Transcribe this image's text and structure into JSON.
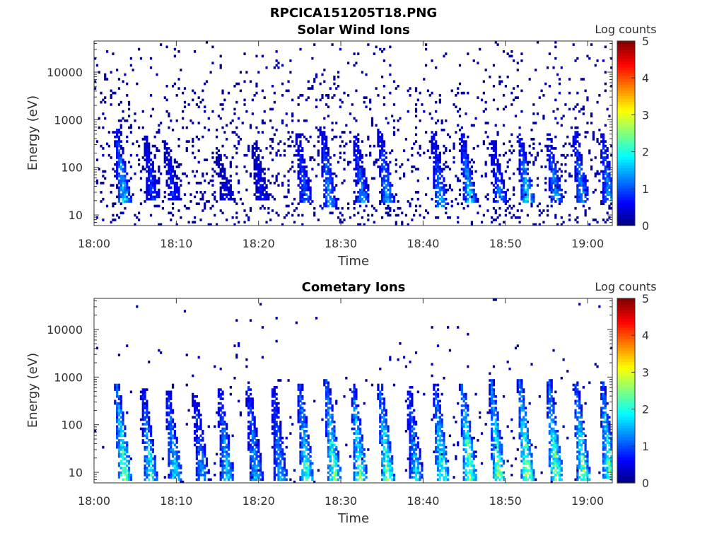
{
  "figure": {
    "title": "RPCICA151205T18.PNG"
  },
  "chart_data": [
    {
      "type": "heatmap",
      "title": "Solar Wind Ions",
      "xlabel": "Time",
      "ylabel": "Energy (eV)",
      "x_ticks": [
        "18:00",
        "18:10",
        "18:20",
        "18:30",
        "18:40",
        "18:50",
        "19:00"
      ],
      "x_tick_minutes": [
        0,
        10,
        20,
        30,
        40,
        50,
        60
      ],
      "xlim_minutes": [
        0,
        63
      ],
      "y_scale": "log",
      "y_ticks": [
        "10",
        "100",
        "1000",
        "10000"
      ],
      "y_tick_values": [
        10,
        100,
        1000,
        10000
      ],
      "ylim": [
        6,
        45000
      ],
      "colorbar": {
        "label": "Log counts",
        "ticks": [
          "0",
          "1",
          "2",
          "3",
          "4",
          "5"
        ],
        "range": [
          0,
          5
        ],
        "colormap": "jet"
      },
      "pattern": {
        "sparse_background_level": 0.3,
        "bursts": [
          {
            "t": 2.8,
            "e_high": 500,
            "e_low": 25,
            "peak": 1.8
          },
          {
            "t": 6.3,
            "e_high": 350,
            "e_low": 30,
            "peak": 1.0
          },
          {
            "t": 8.8,
            "e_high": 250,
            "e_low": 30,
            "peak": 0.9
          },
          {
            "t": 15.2,
            "e_high": 150,
            "e_low": 30,
            "peak": 0.6
          },
          {
            "t": 19.5,
            "e_high": 250,
            "e_low": 30,
            "peak": 0.7
          },
          {
            "t": 24.8,
            "e_high": 400,
            "e_low": 25,
            "peak": 1.2
          },
          {
            "t": 27.8,
            "e_high": 600,
            "e_low": 20,
            "peak": 1.5
          },
          {
            "t": 31.8,
            "e_high": 400,
            "e_low": 25,
            "peak": 1.4
          },
          {
            "t": 34.8,
            "e_high": 450,
            "e_low": 25,
            "peak": 1.6
          },
          {
            "t": 41.3,
            "e_high": 450,
            "e_low": 20,
            "peak": 1.5
          },
          {
            "t": 44.8,
            "e_high": 400,
            "e_low": 25,
            "peak": 1.8
          },
          {
            "t": 48.5,
            "e_high": 300,
            "e_low": 25,
            "peak": 1.3
          },
          {
            "t": 51.8,
            "e_high": 400,
            "e_low": 25,
            "peak": 1.9
          },
          {
            "t": 55.3,
            "e_high": 400,
            "e_low": 25,
            "peak": 1.6
          },
          {
            "t": 58.5,
            "e_high": 450,
            "e_low": 25,
            "peak": 1.5
          },
          {
            "t": 61.8,
            "e_high": 400,
            "e_low": 25,
            "peak": 1.6
          }
        ]
      }
    },
    {
      "type": "heatmap",
      "title": "Cometary Ions",
      "xlabel": "Time",
      "ylabel": "Energy (eV)",
      "x_ticks": [
        "18:00",
        "18:10",
        "18:20",
        "18:30",
        "18:40",
        "18:50",
        "19:00"
      ],
      "x_tick_minutes": [
        0,
        10,
        20,
        30,
        40,
        50,
        60
      ],
      "xlim_minutes": [
        0,
        63
      ],
      "y_scale": "log",
      "y_ticks": [
        "10",
        "100",
        "1000",
        "10000"
      ],
      "y_tick_values": [
        10,
        100,
        1000,
        10000
      ],
      "ylim": [
        6,
        45000
      ],
      "colorbar": {
        "label": "Log counts",
        "ticks": [
          "0",
          "1",
          "2",
          "3",
          "4",
          "5"
        ],
        "range": [
          0,
          5
        ],
        "colormap": "jet"
      },
      "pattern": {
        "sparse_background_level": 0.05,
        "bursts": [
          {
            "t": 2.8,
            "e_high": 600,
            "e_low": 10,
            "peak": 2.6
          },
          {
            "t": 6.0,
            "e_high": 450,
            "e_low": 10,
            "peak": 2.0
          },
          {
            "t": 9.0,
            "e_high": 400,
            "e_low": 10,
            "peak": 1.9
          },
          {
            "t": 12.3,
            "e_high": 350,
            "e_low": 10,
            "peak": 1.5
          },
          {
            "t": 15.3,
            "e_high": 450,
            "e_low": 10,
            "peak": 1.8
          },
          {
            "t": 18.8,
            "e_high": 500,
            "e_low": 10,
            "peak": 1.7
          },
          {
            "t": 21.8,
            "e_high": 500,
            "e_low": 10,
            "peak": 1.6
          },
          {
            "t": 25.0,
            "e_high": 600,
            "e_low": 10,
            "peak": 2.3
          },
          {
            "t": 28.3,
            "e_high": 700,
            "e_low": 10,
            "peak": 2.5
          },
          {
            "t": 31.5,
            "e_high": 600,
            "e_low": 10,
            "peak": 2.4
          },
          {
            "t": 34.8,
            "e_high": 600,
            "e_low": 10,
            "peak": 2.6
          },
          {
            "t": 38.3,
            "e_high": 500,
            "e_low": 10,
            "peak": 1.8
          },
          {
            "t": 41.5,
            "e_high": 600,
            "e_low": 10,
            "peak": 2.4
          },
          {
            "t": 44.8,
            "e_high": 600,
            "e_low": 10,
            "peak": 2.8
          },
          {
            "t": 48.3,
            "e_high": 700,
            "e_low": 10,
            "peak": 2.6
          },
          {
            "t": 51.8,
            "e_high": 700,
            "e_low": 10,
            "peak": 2.8
          },
          {
            "t": 55.3,
            "e_high": 700,
            "e_low": 10,
            "peak": 2.7
          },
          {
            "t": 58.6,
            "e_high": 650,
            "e_low": 10,
            "peak": 2.5
          },
          {
            "t": 61.8,
            "e_high": 650,
            "e_low": 10,
            "peak": 2.5
          }
        ]
      }
    }
  ]
}
